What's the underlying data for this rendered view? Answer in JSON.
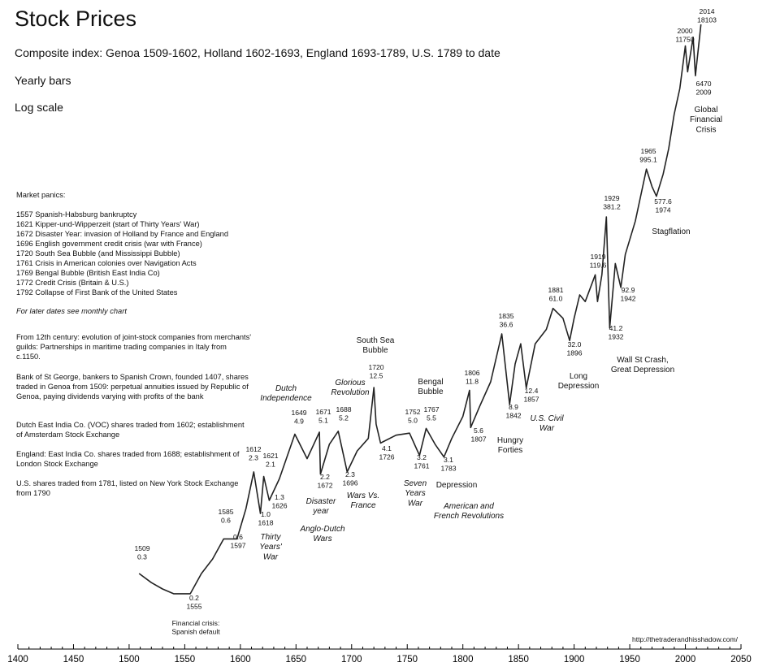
{
  "chart_data": {
    "type": "line",
    "title": "Stock Prices",
    "subtitle": "Composite index: Genoa 1509-1602, Holland 1602-1693, England 1693-1789, U.S. 1789 to date",
    "bars_note": "Yearly bars",
    "scale_note": "Log scale",
    "y_scale": "log",
    "xlim": [
      1400,
      2050
    ],
    "x_ticks": [
      "1400",
      "1450",
      "1500",
      "1550",
      "1600",
      "1650",
      "1700",
      "1750",
      "1800",
      "1850",
      "1900",
      "1950",
      "2000",
      "2050"
    ],
    "grid": false,
    "legend": "none",
    "line_color": "#222222",
    "x": [
      1509,
      1520,
      1530,
      1540,
      1555,
      1565,
      1575,
      1585,
      1597,
      1605,
      1612,
      1618,
      1621,
      1626,
      1635,
      1649,
      1660,
      1671,
      1672,
      1680,
      1688,
      1696,
      1705,
      1715,
      1720,
      1722,
      1726,
      1740,
      1752,
      1761,
      1767,
      1775,
      1783,
      1790,
      1800,
      1806,
      1807,
      1815,
      1825,
      1835,
      1842,
      1847,
      1852,
      1857,
      1865,
      1875,
      1881,
      1890,
      1896,
      1900,
      1905,
      1910,
      1919,
      1921,
      1925,
      1929,
      1932,
      1937,
      1942,
      1946,
      1955,
      1965,
      1970,
      1974,
      1980,
      1985,
      1990,
      1995,
      2000,
      2002,
      2007,
      2009,
      2014
    ],
    "y": [
      0.3,
      0.25,
      0.22,
      0.2,
      0.2,
      0.3,
      0.4,
      0.6,
      0.6,
      1.1,
      2.3,
      1.0,
      2.1,
      1.3,
      2.0,
      4.9,
      3.0,
      5.1,
      2.2,
      4.0,
      5.2,
      2.3,
      3.5,
      4.5,
      12.5,
      6.0,
      4.1,
      4.8,
      5.0,
      3.2,
      5.5,
      4.0,
      3.1,
      4.5,
      7.0,
      11.8,
      5.6,
      8.5,
      14.0,
      36.6,
      8.9,
      20.0,
      30.0,
      12.4,
      30.0,
      40.0,
      61.0,
      50.0,
      32.0,
      50.0,
      80.0,
      70.0,
      119.6,
      70.0,
      120.0,
      381.2,
      41.2,
      150.0,
      92.9,
      180.0,
      350.0,
      995.1,
      700.0,
      577.6,
      900.0,
      1500.0,
      3000.0,
      5000.0,
      11750,
      7000,
      14000,
      6470,
      18103
    ],
    "annotations": [
      {
        "year": 1509,
        "lines": [
          "1509",
          "0.3"
        ]
      },
      {
        "year": 1555,
        "lines": [
          "0.2",
          "1555"
        ]
      },
      {
        "year": 1555,
        "lines": [
          "Financial crisis:",
          "Spanish default"
        ]
      },
      {
        "year": 1585,
        "lines": [
          "1585",
          "0.6"
        ]
      },
      {
        "year": 1597,
        "lines": [
          "0.6",
          "1597"
        ]
      },
      {
        "year": 1612,
        "lines": [
          "1612",
          "2.3"
        ]
      },
      {
        "year": 1618,
        "lines": [
          "1.0",
          "1618"
        ]
      },
      {
        "year": 1621,
        "lines": [
          "1621",
          "2.1"
        ]
      },
      {
        "year": 1626,
        "lines": [
          "1.3",
          "1626"
        ]
      },
      {
        "year": 1649,
        "lines": [
          "1649",
          "4.9"
        ]
      },
      {
        "year": 1671,
        "lines": [
          "1671",
          "5.1"
        ]
      },
      {
        "year": 1672,
        "lines": [
          "2.2",
          "1672"
        ]
      },
      {
        "year": 1688,
        "lines": [
          "1688",
          "5.2"
        ]
      },
      {
        "year": 1696,
        "lines": [
          "2.3",
          "1696"
        ]
      },
      {
        "year": 1720,
        "lines": [
          "1720",
          "12.5"
        ]
      },
      {
        "year": 1726,
        "lines": [
          "4.1",
          "1726"
        ]
      },
      {
        "year": 1752,
        "lines": [
          "1752",
          "5.0"
        ]
      },
      {
        "year": 1761,
        "lines": [
          "3.2",
          "1761"
        ]
      },
      {
        "year": 1767,
        "lines": [
          "1767",
          "5.5"
        ]
      },
      {
        "year": 1783,
        "lines": [
          "3.1",
          "1783"
        ]
      },
      {
        "year": 1806,
        "lines": [
          "1806",
          "11.8"
        ]
      },
      {
        "year": 1807,
        "lines": [
          "5.6",
          "1807"
        ]
      },
      {
        "year": 1835,
        "lines": [
          "1835",
          "36.6"
        ]
      },
      {
        "year": 1842,
        "lines": [
          "8.9",
          "1842"
        ]
      },
      {
        "year": 1857,
        "lines": [
          "12.4",
          "1857"
        ]
      },
      {
        "year": 1881,
        "lines": [
          "1881",
          "61.0"
        ]
      },
      {
        "year": 1896,
        "lines": [
          "32.0",
          "1896"
        ]
      },
      {
        "year": 1919,
        "lines": [
          "1919",
          "119.6"
        ]
      },
      {
        "year": 1929,
        "lines": [
          "1929",
          "381.2"
        ]
      },
      {
        "year": 1932,
        "lines": [
          "41.2",
          "1932"
        ]
      },
      {
        "year": 1942,
        "lines": [
          "92.9",
          "1942"
        ]
      },
      {
        "year": 1965,
        "lines": [
          "1965",
          "995.1"
        ]
      },
      {
        "year": 1974,
        "lines": [
          "577.6",
          "1974"
        ]
      },
      {
        "year": 2000,
        "lines": [
          "2000",
          "11750"
        ]
      },
      {
        "year": 2009,
        "lines": [
          "6470",
          "2009"
        ]
      },
      {
        "year": 2014,
        "lines": [
          "2014",
          "18103"
        ]
      }
    ],
    "events": [
      {
        "lines": [
          "Thirty",
          "Years'",
          "War"
        ],
        "italic": true
      },
      {
        "lines": [
          "Dutch",
          "Independence"
        ],
        "italic": true
      },
      {
        "lines": [
          "Disaster",
          "year"
        ],
        "italic": true
      },
      {
        "lines": [
          "Anglo-Dutch",
          "Wars"
        ],
        "italic": true
      },
      {
        "lines": [
          "Glorious",
          "Revolution"
        ],
        "italic": true
      },
      {
        "lines": [
          "Wars Vs.",
          "France"
        ],
        "italic": true
      },
      {
        "lines": [
          "South Sea",
          "Bubble"
        ],
        "italic": false
      },
      {
        "lines": [
          "Seven",
          "Years",
          "War"
        ],
        "italic": true
      },
      {
        "lines": [
          "Bengal",
          "Bubble"
        ],
        "italic": false
      },
      {
        "lines": [
          "Depression"
        ],
        "italic": false
      },
      {
        "lines": [
          "American and",
          "French Revolutions"
        ],
        "italic": true
      },
      {
        "lines": [
          "Hungry",
          "Forties"
        ],
        "italic": false
      },
      {
        "lines": [
          "U.S. Civil",
          "War"
        ],
        "italic": true
      },
      {
        "lines": [
          "Long",
          "Depression"
        ],
        "italic": false
      },
      {
        "lines": [
          "Wall St Crash,",
          "Great Depression"
        ],
        "italic": false
      },
      {
        "lines": [
          "Stagflation"
        ],
        "italic": false
      },
      {
        "lines": [
          "Global",
          "Financial",
          "Crisis"
        ],
        "italic": false
      }
    ]
  },
  "sidebar": {
    "panics_heading": "Market panics:",
    "panics": [
      "1557 Spanish-Habsburg bankruptcy",
      "1621 Kipper-und-Wipperzeit (start of Thirty Years' War)",
      "1672 Disaster Year: invasion of Holland by France and England",
      "1696 English government credit crisis (war with France)",
      "1720 South Sea Bubble (and Mississippi Bubble)",
      "1761 Crisis in American colonies over Navigation Acts",
      "1769 Bengal Bubble (British East India Co)",
      "1772 Credit Crisis (Britain & U.S.)",
      "1792 Collapse of First Bank of the United States"
    ],
    "later_note": "For later dates see monthly chart",
    "paragraphs": [
      "From 12th century: evolution of joint-stock companies from merchants' guilds: Partnerships in maritime trading companies in Italy from c.1150.",
      "Bank of St George, bankers to Spanish Crown, founded 1407, shares traded in Genoa from 1509: perpetual annuities issued by Republic of Genoa, paying dividends varying with profits of the bank",
      "Dutch East India Co.  (VOC) shares traded from 1602; establishment of Amsterdam Stock Exchange",
      "England: East India Co. shares traded from 1688; establishment of London Stock Exchange",
      "U.S. shares traded from 1781, listed on New York Stock Exchange from 1790"
    ]
  },
  "source": "http://thetraderandhisshadow.com/"
}
